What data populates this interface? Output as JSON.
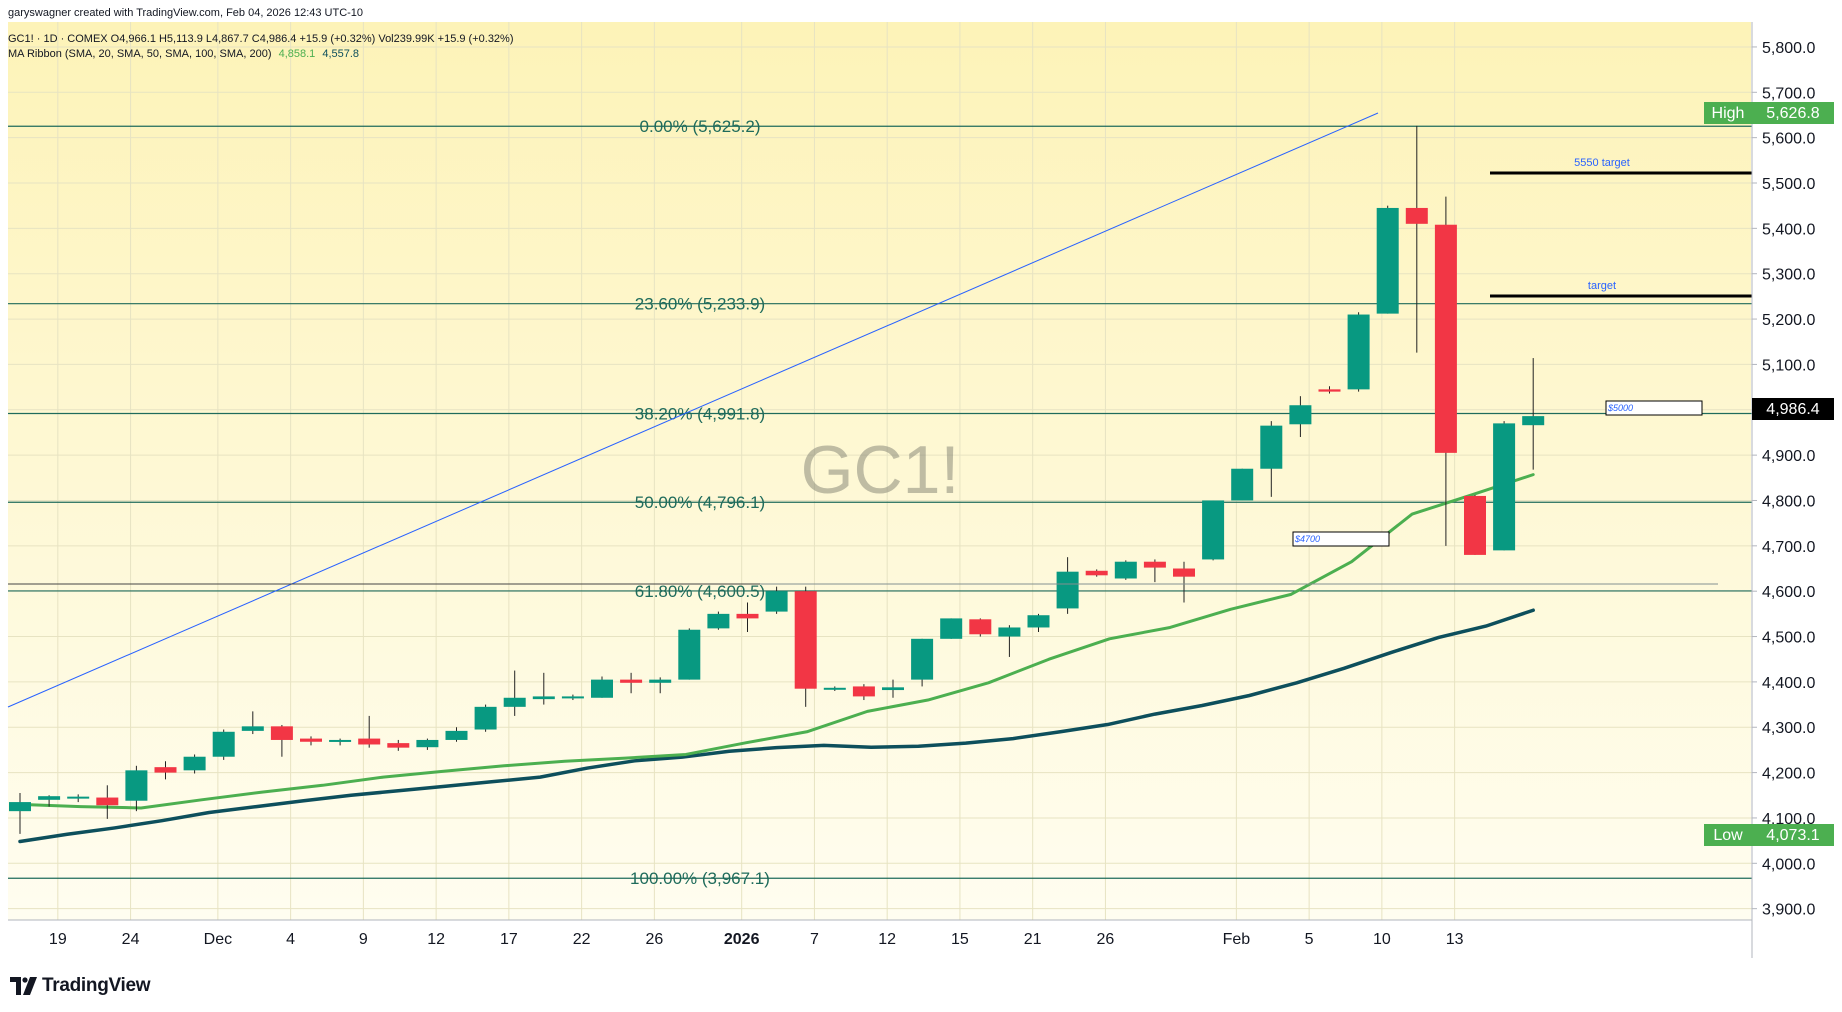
{
  "header": {
    "attribution": "garyswagner created with TradingView.com, Feb 04, 2026 12:43 UTC-10",
    "symbol_line": "GC1! · 1D · COMEX  O4,966.1  H5,113.9  L4,867.7  C4,986.4  +15.9 (+0.32%)  Vol239.99K  +15.9 (+0.32%)",
    "ma_line_label": "MA Ribbon (SMA, 20, SMA, 50, SMA, 100, SMA, 200)",
    "ma_val1": "4,858.1",
    "ma_val2": "4,557.8"
  },
  "watermark": "GC1!",
  "branding": {
    "logo_text": "TradingView"
  },
  "colors": {
    "up": "#089981",
    "down": "#f23645",
    "ma20": "#4caf50",
    "ma50": "#0d4f5c",
    "fib_line": "#1f6b5b",
    "fib_text": "#1f6b5b",
    "trend": "#2962ff",
    "bg_top": "#fdf3b8",
    "bg_bottom": "#fffdf0"
  },
  "chart_data": {
    "type": "candlestick",
    "symbol": "GC1!",
    "interval": "1D",
    "exchange": "COMEX",
    "y_range": [
      3875,
      5855
    ],
    "y_ticks": [
      "3,900.0",
      "4,000.0",
      "4,100.0",
      "4,200.0",
      "4,300.0",
      "4,400.0",
      "4,500.0",
      "4,600.0",
      "4,700.0",
      "4,800.0",
      "4,900.0",
      "5,000.0",
      "5,100.0",
      "5,200.0",
      "5,300.0",
      "5,400.0",
      "5,500.0",
      "5,600.0",
      "5,700.0",
      "5,800.0"
    ],
    "x_ticks": [
      {
        "label": "19",
        "bold": false
      },
      {
        "label": "24",
        "bold": false
      },
      {
        "label": "Dec",
        "bold": false
      },
      {
        "label": "4",
        "bold": false
      },
      {
        "label": "9",
        "bold": false
      },
      {
        "label": "12",
        "bold": false
      },
      {
        "label": "17",
        "bold": false
      },
      {
        "label": "22",
        "bold": false
      },
      {
        "label": "26",
        "bold": false
      },
      {
        "label": "2026",
        "bold": true
      },
      {
        "label": "7",
        "bold": false
      },
      {
        "label": "12",
        "bold": false
      },
      {
        "label": "15",
        "bold": false
      },
      {
        "label": "21",
        "bold": false
      },
      {
        "label": "26",
        "bold": false
      },
      {
        "label": "Feb",
        "bold": false
      },
      {
        "label": "5",
        "bold": false
      },
      {
        "label": "10",
        "bold": false
      },
      {
        "label": "13",
        "bold": false
      }
    ],
    "candles": [
      {
        "date": "Nov 19",
        "o": 4115,
        "h": 4155,
        "l": 4065,
        "c": 4135
      },
      {
        "date": "Nov 20",
        "o": 4140,
        "h": 4150,
        "l": 4125,
        "c": 4148
      },
      {
        "date": "Nov 21",
        "o": 4145,
        "h": 4152,
        "l": 4135,
        "c": 4147
      },
      {
        "date": "Nov 24",
        "o": 4145,
        "h": 4172,
        "l": 4098,
        "c": 4128
      },
      {
        "date": "Nov 25",
        "o": 4138,
        "h": 4215,
        "l": 4115,
        "c": 4205
      },
      {
        "date": "Nov 26",
        "o": 4212,
        "h": 4225,
        "l": 4185,
        "c": 4200
      },
      {
        "date": "Nov 28",
        "o": 4205,
        "h": 4240,
        "l": 4198,
        "c": 4235
      },
      {
        "date": "Dec 1",
        "o": 4235,
        "h": 4295,
        "l": 4228,
        "c": 4290
      },
      {
        "date": "Dec 2",
        "o": 4292,
        "h": 4335,
        "l": 4285,
        "c": 4302
      },
      {
        "date": "Dec 3",
        "o": 4302,
        "h": 4305,
        "l": 4235,
        "c": 4272
      },
      {
        "date": "Dec 4",
        "o": 4275,
        "h": 4280,
        "l": 4260,
        "c": 4268
      },
      {
        "date": "Dec 5",
        "o": 4270,
        "h": 4275,
        "l": 4260,
        "c": 4272
      },
      {
        "date": "Dec 8",
        "o": 4275,
        "h": 4325,
        "l": 4255,
        "c": 4262
      },
      {
        "date": "Dec 9",
        "o": 4265,
        "h": 4272,
        "l": 4248,
        "c": 4255
      },
      {
        "date": "Dec 10",
        "o": 4256,
        "h": 4275,
        "l": 4250,
        "c": 4272
      },
      {
        "date": "Dec 11",
        "o": 4272,
        "h": 4300,
        "l": 4268,
        "c": 4292
      },
      {
        "date": "Dec 12",
        "o": 4295,
        "h": 4350,
        "l": 4290,
        "c": 4345
      },
      {
        "date": "Dec 15",
        "o": 4345,
        "h": 4425,
        "l": 4325,
        "c": 4365
      },
      {
        "date": "Dec 16",
        "o": 4362,
        "h": 4420,
        "l": 4350,
        "c": 4368
      },
      {
        "date": "Dec 17",
        "o": 4365,
        "h": 4372,
        "l": 4360,
        "c": 4368
      },
      {
        "date": "Dec 18",
        "o": 4365,
        "h": 4412,
        "l": 4365,
        "c": 4405
      },
      {
        "date": "Dec 19",
        "o": 4405,
        "h": 4420,
        "l": 4375,
        "c": 4398
      },
      {
        "date": "Dec 22",
        "o": 4398,
        "h": 4410,
        "l": 4375,
        "c": 4405
      },
      {
        "date": "Dec 23",
        "o": 4405,
        "h": 4518,
        "l": 4405,
        "c": 4515
      },
      {
        "date": "Dec 24",
        "o": 4518,
        "h": 4555,
        "l": 4515,
        "c": 4550
      },
      {
        "date": "Dec 26",
        "o": 4550,
        "h": 4575,
        "l": 4510,
        "c": 4540
      },
      {
        "date": "Dec 29",
        "o": 4555,
        "h": 4610,
        "l": 4550,
        "c": 4600
      },
      {
        "date": "Dec 30",
        "o": 4600,
        "h": 4610,
        "l": 4345,
        "c": 4385
      },
      {
        "date": "Dec 31",
        "o": 4385,
        "h": 4390,
        "l": 4380,
        "c": 4387
      },
      {
        "date": "Jan 2",
        "o": 4390,
        "h": 4395,
        "l": 4360,
        "c": 4368
      },
      {
        "date": "Jan 5",
        "o": 4382,
        "h": 4405,
        "l": 4365,
        "c": 4388
      },
      {
        "date": "Jan 6",
        "o": 4405,
        "h": 4495,
        "l": 4390,
        "c": 4495
      },
      {
        "date": "Jan 7",
        "o": 4495,
        "h": 4540,
        "l": 4495,
        "c": 4540
      },
      {
        "date": "Jan 8",
        "o": 4538,
        "h": 4540,
        "l": 4500,
        "c": 4505
      },
      {
        "date": "Jan 9",
        "o": 4500,
        "h": 4525,
        "l": 4455,
        "c": 4520
      },
      {
        "date": "Jan 12",
        "o": 4520,
        "h": 4550,
        "l": 4510,
        "c": 4547
      },
      {
        "date": "Jan 13",
        "o": 4562,
        "h": 4675,
        "l": 4550,
        "c": 4643
      },
      {
        "date": "Jan 14",
        "o": 4645,
        "h": 4648,
        "l": 4632,
        "c": 4635
      },
      {
        "date": "Jan 15",
        "o": 4628,
        "h": 4668,
        "l": 4625,
        "c": 4665
      },
      {
        "date": "Jan 16",
        "o": 4665,
        "h": 4670,
        "l": 4620,
        "c": 4652
      },
      {
        "date": "Jan 20",
        "o": 4650,
        "h": 4665,
        "l": 4575,
        "c": 4632
      },
      {
        "date": "Jan 21",
        "o": 4670,
        "h": 4800,
        "l": 4668,
        "c": 4800
      },
      {
        "date": "Jan 22",
        "o": 4800,
        "h": 4870,
        "l": 4800,
        "c": 4870
      },
      {
        "date": "Jan 23",
        "o": 4870,
        "h": 4975,
        "l": 4808,
        "c": 4965
      },
      {
        "date": "Jan 26",
        "o": 4968,
        "h": 5030,
        "l": 4940,
        "c": 5010
      },
      {
        "date": "Jan 27",
        "o": 5045,
        "h": 5052,
        "l": 5036,
        "c": 5040
      },
      {
        "date": "Jan 28",
        "o": 5045,
        "h": 5215,
        "l": 5040,
        "c": 5210
      },
      {
        "date": "Jan 29",
        "o": 5212,
        "h": 5450,
        "l": 5212,
        "c": 5445
      },
      {
        "date": "Jan 30",
        "o": 5445,
        "h": 5626,
        "l": 5126,
        "c": 5410
      },
      {
        "date": "Feb 2",
        "o": 5408,
        "h": 5470,
        "l": 4700,
        "c": 4905
      },
      {
        "date": "Feb 3",
        "o": 4810,
        "h": 4812,
        "l": 4680,
        "c": 4680
      },
      {
        "date": "Feb 4",
        "o": 4690,
        "h": 4975,
        "l": 4690,
        "c": 4970
      },
      {
        "date": "Feb 5",
        "o": 4966,
        "h": 5114,
        "l": 4868,
        "c": 4986
      }
    ],
    "sma20": [
      4130,
      4125,
      4122,
      4140,
      4157,
      4172,
      4190,
      4203,
      4215,
      4225,
      4232,
      4240,
      4266,
      4290,
      4335,
      4360,
      4398,
      4450,
      4495,
      4520,
      4560,
      4593,
      4665,
      4770,
      4813,
      4857
    ],
    "sma50": [
      4048,
      4064,
      4078,
      4094,
      4112,
      4125,
      4138,
      4150,
      4160,
      4170,
      4180,
      4190,
      4210,
      4226,
      4234,
      4247,
      4255,
      4260,
      4256,
      4258,
      4265,
      4275,
      4290,
      4306,
      4329,
      4348,
      4370,
      4398,
      4430,
      4465,
      4498,
      4523,
      4558
    ]
  },
  "fib": {
    "levels": [
      {
        "label": "0.00% (5,625.2)",
        "price": 5625.2
      },
      {
        "label": "23.60% (5,233.9)",
        "price": 5233.9
      },
      {
        "label": "38.20% (4,991.8)",
        "price": 4991.8
      },
      {
        "label": "50.00% (4,796.1)",
        "price": 4796.1
      },
      {
        "label": "61.80% (4,600.5)",
        "price": 4600.5
      },
      {
        "label": "100.00% (3,967.1)",
        "price": 3967.1
      }
    ]
  },
  "annotations": {
    "target_5550": "5550 target",
    "target": "target",
    "box_5000": "$5000",
    "box_4700": "$4700"
  },
  "badges": {
    "high_label": "High",
    "high_value": "5,626.8",
    "low_label": "Low",
    "low_value": "4,073.1",
    "last_price": "4,986.4"
  }
}
